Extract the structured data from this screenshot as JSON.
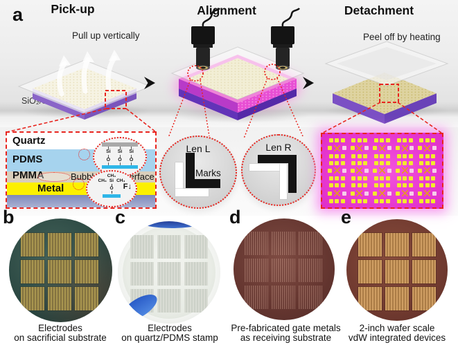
{
  "figure_label": "a",
  "steps": {
    "pickup": {
      "title": "Pick-up",
      "note": "Pull up vertically",
      "substrate": "SiO₂/Si"
    },
    "alignment": {
      "title": "Alignment"
    },
    "detachment": {
      "title": "Detachment",
      "note": "Peel off by heating"
    }
  },
  "stack_inset": {
    "layers": {
      "quartz": "Quartz",
      "pdms": "PDMS",
      "pmma": "PMMA",
      "metal": "Metal"
    },
    "interface_label": "Bubble-free interface",
    "chem_top": {
      "si": "Si",
      "o": "O"
    },
    "chem_bottom": {
      "ch3": "CH₃",
      "si": "Si",
      "o": "O",
      "force": "F",
      "force_arrow": "↓"
    }
  },
  "alignment_inset": {
    "left_label": "Len L",
    "right_label": "Len R",
    "marks_label": "Marks"
  },
  "device_inset": {
    "rows": 3,
    "cols": 5
  },
  "wafer_grid": {
    "rows": 3,
    "cols": 3
  },
  "panels": [
    {
      "label": "b",
      "caption": [
        "Electrodes",
        "on sacrificial substrate"
      ]
    },
    {
      "label": "c",
      "caption": [
        "Electrodes",
        "on quartz/PDMS stamp"
      ]
    },
    {
      "label": "d",
      "caption": [
        "Pre-fabricated gate metals",
        "as receiving substrate"
      ]
    },
    {
      "label": "e",
      "caption": [
        "2-inch wafer scale",
        "vdW integrated devices"
      ]
    }
  ],
  "colors": {
    "annotation_red": "#e8241e",
    "pdms_blue": "#a6d3ee",
    "pmma_beige": "#d9cebb",
    "metal_yellow": "#fcf000",
    "magenta_substrate": "#e93cd3",
    "pad_yellow": "#f2ea2c"
  }
}
